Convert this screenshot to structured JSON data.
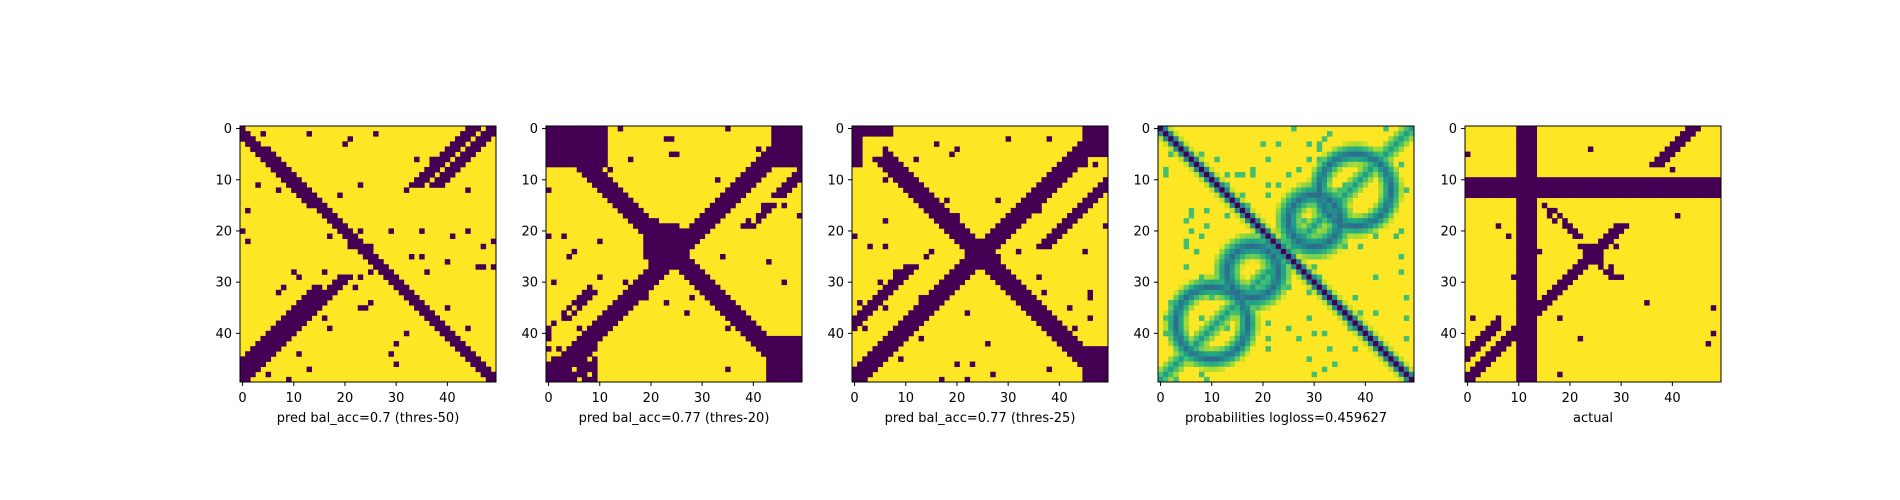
{
  "colors": {
    "colormap": "viridis",
    "low": "#440154",
    "high": "#fde725",
    "frame": "#000000"
  },
  "chart_data": [
    {
      "type": "heatmap",
      "xlabel": "pred bal_acc=0.7 (thres-50)",
      "grid_size": 50,
      "xticks": [
        0,
        10,
        20,
        30,
        40
      ],
      "yticks": [
        0,
        10,
        20,
        30,
        40
      ],
      "values_scale": "binary",
      "pattern": "binary prediction: dark main diagonal and anti-diagonal bands on yellow background, thin scattered dark fragments"
    },
    {
      "type": "heatmap",
      "xlabel": "pred bal_acc=0.77 (thres-20)",
      "grid_size": 50,
      "xticks": [
        0,
        10,
        20,
        30,
        40
      ],
      "yticks": [
        0,
        10,
        20,
        30,
        40
      ],
      "values_scale": "binary",
      "pattern": "binary prediction: thick dark X pattern with dark corner blocks top-left, top-right, bottom-left, bottom-right"
    },
    {
      "type": "heatmap",
      "xlabel": "pred bal_acc=0.77 (thres-25)",
      "grid_size": 50,
      "xticks": [
        0,
        10,
        20,
        30,
        40
      ],
      "yticks": [
        0,
        10,
        20,
        30,
        40
      ],
      "values_scale": "binary",
      "pattern": "binary prediction: dark X pattern with curved off-diagonal streaks"
    },
    {
      "type": "heatmap",
      "xlabel": "probabilities logloss=0.459627",
      "grid_size": 50,
      "xticks": [
        0,
        10,
        20,
        30,
        40
      ],
      "yticks": [
        0,
        10,
        20,
        30,
        40
      ],
      "values_scale": "continuous",
      "pattern": "continuous probabilities: sharp dark main diagonal, soft teal/green loops along anti-diagonal"
    },
    {
      "type": "heatmap",
      "xlabel": "actual",
      "grid_size": 50,
      "xticks": [
        0,
        10,
        20,
        30,
        40
      ],
      "yticks": [
        0,
        10,
        20,
        30,
        40
      ],
      "values_scale": "binary",
      "pattern": "ground truth: dark vertical band at columns 10-13, dark horizontal band at rows 10-13, dark anti-diagonal lower-right, scattered blobs"
    }
  ]
}
